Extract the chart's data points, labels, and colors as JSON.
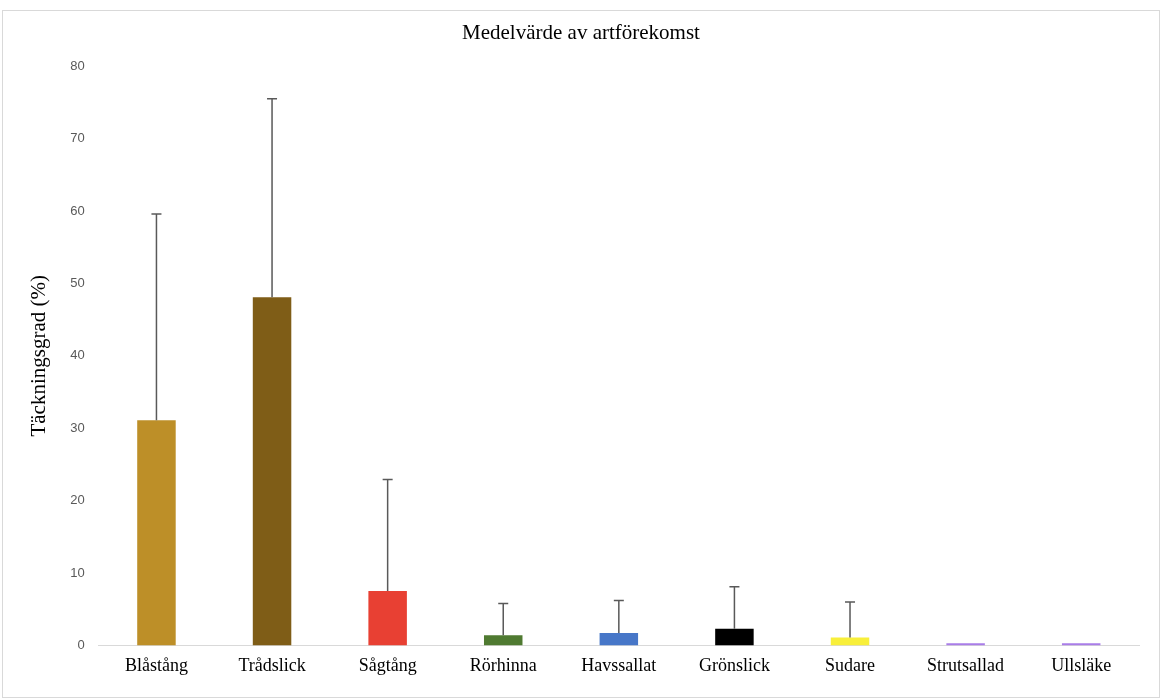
{
  "chart_data": {
    "type": "bar",
    "title": "Medelvärde av artförekomst",
    "ylabel": "Täckningsgrad (%)",
    "categories": [
      "Blåstång",
      "Trådslick",
      "Sågtång",
      "Rörhinna",
      "Havssallat",
      "Grönslick",
      "Sudare",
      "Strutsallad",
      "Ullsläke"
    ],
    "values": [
      31.1,
      48.1,
      7.5,
      1.4,
      1.7,
      2.3,
      1.1,
      0.3,
      0.3
    ],
    "colors": [
      "#bd8f28",
      "#7f5d17",
      "#e84033",
      "#4f7a31",
      "#4777c8",
      "#000000",
      "#f8ef3a",
      "#a97de8",
      "#a97de8"
    ],
    "errors": [
      [
        31.1,
        59.6
      ],
      [
        48.1,
        75.5
      ],
      [
        7.5,
        22.9
      ],
      [
        1.4,
        5.8
      ],
      [
        1.7,
        6.2
      ],
      [
        2.3,
        8.1
      ],
      [
        1.1,
        6.0
      ],
      null,
      null
    ],
    "ylim": [
      0,
      80
    ],
    "yticks": [
      0,
      10,
      20,
      30,
      40,
      50,
      60,
      70,
      80
    ],
    "grid": false,
    "legend": false
  }
}
